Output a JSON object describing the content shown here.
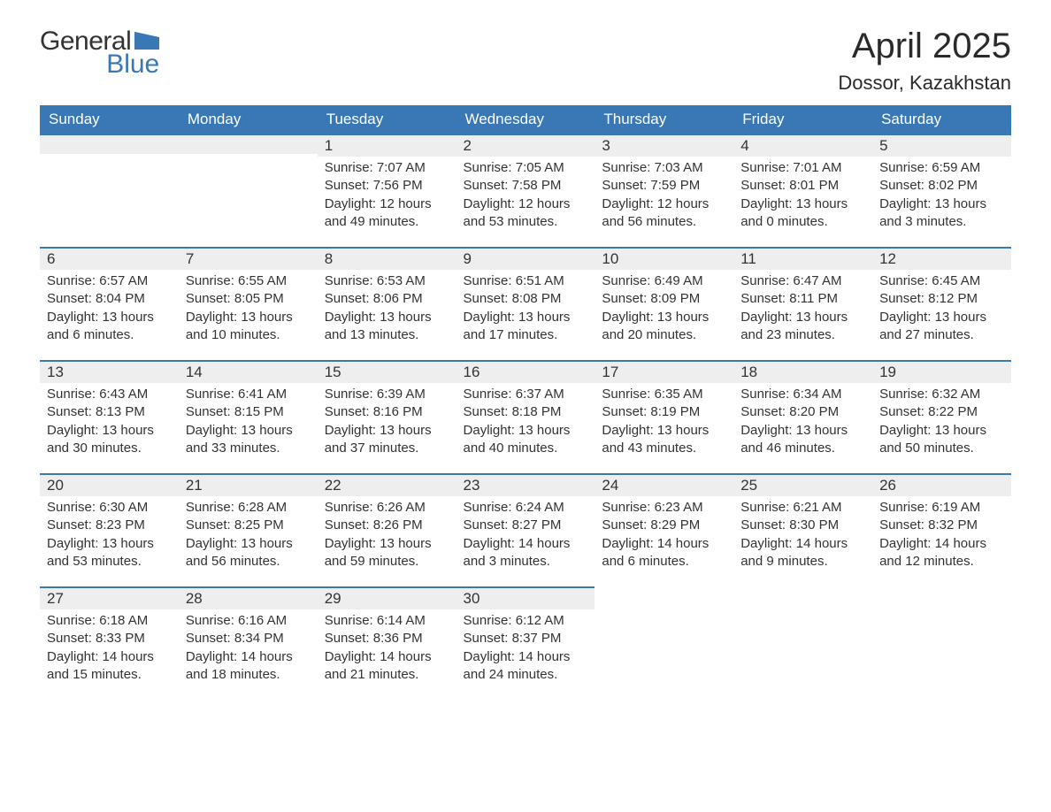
{
  "logo": {
    "general": "General",
    "blue": "Blue",
    "general_color": "#333333",
    "blue_color": "#3a78b5",
    "flag_color": "#3a78b5"
  },
  "title": "April 2025",
  "location": "Dossor, Kazakhstan",
  "colors": {
    "header_bg": "#3a78b5",
    "header_text": "#ffffff",
    "daynum_bg": "#eeeeee",
    "border_top": "#3a78b5",
    "text": "#333333",
    "background": "#ffffff"
  },
  "weekdays": [
    "Sunday",
    "Monday",
    "Tuesday",
    "Wednesday",
    "Thursday",
    "Friday",
    "Saturday"
  ],
  "weeks": [
    [
      null,
      null,
      {
        "num": "1",
        "sunrise": "Sunrise: 7:07 AM",
        "sunset": "Sunset: 7:56 PM",
        "daylight1": "Daylight: 12 hours",
        "daylight2": "and 49 minutes."
      },
      {
        "num": "2",
        "sunrise": "Sunrise: 7:05 AM",
        "sunset": "Sunset: 7:58 PM",
        "daylight1": "Daylight: 12 hours",
        "daylight2": "and 53 minutes."
      },
      {
        "num": "3",
        "sunrise": "Sunrise: 7:03 AM",
        "sunset": "Sunset: 7:59 PM",
        "daylight1": "Daylight: 12 hours",
        "daylight2": "and 56 minutes."
      },
      {
        "num": "4",
        "sunrise": "Sunrise: 7:01 AM",
        "sunset": "Sunset: 8:01 PM",
        "daylight1": "Daylight: 13 hours",
        "daylight2": "and 0 minutes."
      },
      {
        "num": "5",
        "sunrise": "Sunrise: 6:59 AM",
        "sunset": "Sunset: 8:02 PM",
        "daylight1": "Daylight: 13 hours",
        "daylight2": "and 3 minutes."
      }
    ],
    [
      {
        "num": "6",
        "sunrise": "Sunrise: 6:57 AM",
        "sunset": "Sunset: 8:04 PM",
        "daylight1": "Daylight: 13 hours",
        "daylight2": "and 6 minutes."
      },
      {
        "num": "7",
        "sunrise": "Sunrise: 6:55 AM",
        "sunset": "Sunset: 8:05 PM",
        "daylight1": "Daylight: 13 hours",
        "daylight2": "and 10 minutes."
      },
      {
        "num": "8",
        "sunrise": "Sunrise: 6:53 AM",
        "sunset": "Sunset: 8:06 PM",
        "daylight1": "Daylight: 13 hours",
        "daylight2": "and 13 minutes."
      },
      {
        "num": "9",
        "sunrise": "Sunrise: 6:51 AM",
        "sunset": "Sunset: 8:08 PM",
        "daylight1": "Daylight: 13 hours",
        "daylight2": "and 17 minutes."
      },
      {
        "num": "10",
        "sunrise": "Sunrise: 6:49 AM",
        "sunset": "Sunset: 8:09 PM",
        "daylight1": "Daylight: 13 hours",
        "daylight2": "and 20 minutes."
      },
      {
        "num": "11",
        "sunrise": "Sunrise: 6:47 AM",
        "sunset": "Sunset: 8:11 PM",
        "daylight1": "Daylight: 13 hours",
        "daylight2": "and 23 minutes."
      },
      {
        "num": "12",
        "sunrise": "Sunrise: 6:45 AM",
        "sunset": "Sunset: 8:12 PM",
        "daylight1": "Daylight: 13 hours",
        "daylight2": "and 27 minutes."
      }
    ],
    [
      {
        "num": "13",
        "sunrise": "Sunrise: 6:43 AM",
        "sunset": "Sunset: 8:13 PM",
        "daylight1": "Daylight: 13 hours",
        "daylight2": "and 30 minutes."
      },
      {
        "num": "14",
        "sunrise": "Sunrise: 6:41 AM",
        "sunset": "Sunset: 8:15 PM",
        "daylight1": "Daylight: 13 hours",
        "daylight2": "and 33 minutes."
      },
      {
        "num": "15",
        "sunrise": "Sunrise: 6:39 AM",
        "sunset": "Sunset: 8:16 PM",
        "daylight1": "Daylight: 13 hours",
        "daylight2": "and 37 minutes."
      },
      {
        "num": "16",
        "sunrise": "Sunrise: 6:37 AM",
        "sunset": "Sunset: 8:18 PM",
        "daylight1": "Daylight: 13 hours",
        "daylight2": "and 40 minutes."
      },
      {
        "num": "17",
        "sunrise": "Sunrise: 6:35 AM",
        "sunset": "Sunset: 8:19 PM",
        "daylight1": "Daylight: 13 hours",
        "daylight2": "and 43 minutes."
      },
      {
        "num": "18",
        "sunrise": "Sunrise: 6:34 AM",
        "sunset": "Sunset: 8:20 PM",
        "daylight1": "Daylight: 13 hours",
        "daylight2": "and 46 minutes."
      },
      {
        "num": "19",
        "sunrise": "Sunrise: 6:32 AM",
        "sunset": "Sunset: 8:22 PM",
        "daylight1": "Daylight: 13 hours",
        "daylight2": "and 50 minutes."
      }
    ],
    [
      {
        "num": "20",
        "sunrise": "Sunrise: 6:30 AM",
        "sunset": "Sunset: 8:23 PM",
        "daylight1": "Daylight: 13 hours",
        "daylight2": "and 53 minutes."
      },
      {
        "num": "21",
        "sunrise": "Sunrise: 6:28 AM",
        "sunset": "Sunset: 8:25 PM",
        "daylight1": "Daylight: 13 hours",
        "daylight2": "and 56 minutes."
      },
      {
        "num": "22",
        "sunrise": "Sunrise: 6:26 AM",
        "sunset": "Sunset: 8:26 PM",
        "daylight1": "Daylight: 13 hours",
        "daylight2": "and 59 minutes."
      },
      {
        "num": "23",
        "sunrise": "Sunrise: 6:24 AM",
        "sunset": "Sunset: 8:27 PM",
        "daylight1": "Daylight: 14 hours",
        "daylight2": "and 3 minutes."
      },
      {
        "num": "24",
        "sunrise": "Sunrise: 6:23 AM",
        "sunset": "Sunset: 8:29 PM",
        "daylight1": "Daylight: 14 hours",
        "daylight2": "and 6 minutes."
      },
      {
        "num": "25",
        "sunrise": "Sunrise: 6:21 AM",
        "sunset": "Sunset: 8:30 PM",
        "daylight1": "Daylight: 14 hours",
        "daylight2": "and 9 minutes."
      },
      {
        "num": "26",
        "sunrise": "Sunrise: 6:19 AM",
        "sunset": "Sunset: 8:32 PM",
        "daylight1": "Daylight: 14 hours",
        "daylight2": "and 12 minutes."
      }
    ],
    [
      {
        "num": "27",
        "sunrise": "Sunrise: 6:18 AM",
        "sunset": "Sunset: 8:33 PM",
        "daylight1": "Daylight: 14 hours",
        "daylight2": "and 15 minutes."
      },
      {
        "num": "28",
        "sunrise": "Sunrise: 6:16 AM",
        "sunset": "Sunset: 8:34 PM",
        "daylight1": "Daylight: 14 hours",
        "daylight2": "and 18 minutes."
      },
      {
        "num": "29",
        "sunrise": "Sunrise: 6:14 AM",
        "sunset": "Sunset: 8:36 PM",
        "daylight1": "Daylight: 14 hours",
        "daylight2": "and 21 minutes."
      },
      {
        "num": "30",
        "sunrise": "Sunrise: 6:12 AM",
        "sunset": "Sunset: 8:37 PM",
        "daylight1": "Daylight: 14 hours",
        "daylight2": "and 24 minutes."
      },
      null,
      null,
      null
    ]
  ]
}
